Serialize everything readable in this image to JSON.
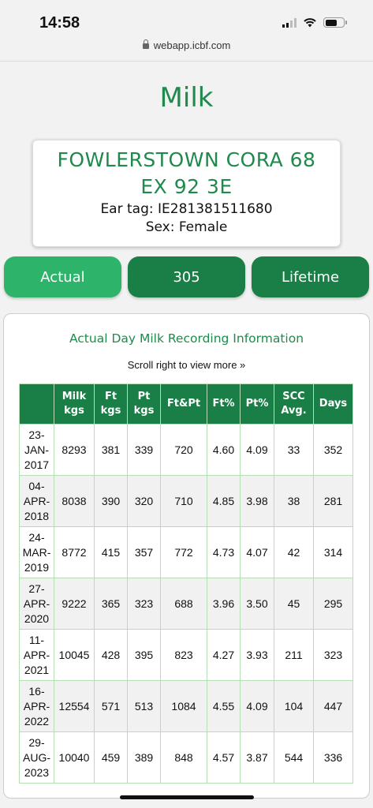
{
  "status": {
    "time": "14:58"
  },
  "browser": {
    "url": "webapp.icbf.com"
  },
  "page": {
    "title": "Milk"
  },
  "animal": {
    "name_line1": "FOWLERSTOWN CORA 68",
    "name_line2": "EX 92 3E",
    "ear_tag": "Ear tag: IE281381511680",
    "sex": "Sex: Female"
  },
  "tabs": [
    {
      "label": "Actual",
      "active": true
    },
    {
      "label": "305",
      "active": false
    },
    {
      "label": "Lifetime",
      "active": false
    }
  ],
  "table": {
    "title": "Actual Day Milk Recording Information",
    "scroll_hint": "Scroll right to view more »",
    "headers": [
      "",
      "Milk kgs",
      "Ft kgs",
      "Pt kgs",
      "Ft&Pt",
      "Ft%",
      "Pt%",
      "SCC Avg.",
      "Days"
    ],
    "rows": [
      [
        "23-JAN-2017",
        "8293",
        "381",
        "339",
        "720",
        "4.60",
        "4.09",
        "33",
        "352"
      ],
      [
        "04-APR-2018",
        "8038",
        "390",
        "320",
        "710",
        "4.85",
        "3.98",
        "38",
        "281"
      ],
      [
        "24-MAR-2019",
        "8772",
        "415",
        "357",
        "772",
        "4.73",
        "4.07",
        "42",
        "314"
      ],
      [
        "27-APR-2020",
        "9222",
        "365",
        "323",
        "688",
        "3.96",
        "3.50",
        "45",
        "295"
      ],
      [
        "11-APR-2021",
        "10045",
        "428",
        "395",
        "823",
        "4.27",
        "3.93",
        "211",
        "323"
      ],
      [
        "16-APR-2022",
        "12554",
        "571",
        "513",
        "1084",
        "4.55",
        "4.09",
        "104",
        "447"
      ],
      [
        "29-AUG-2023",
        "10040",
        "459",
        "389",
        "848",
        "4.57",
        "3.87",
        "544",
        "336"
      ]
    ]
  },
  "colors": {
    "brand_green": "#1f8a4c",
    "tab_dark": "#1a7f46",
    "tab_active": "#2db36a"
  }
}
